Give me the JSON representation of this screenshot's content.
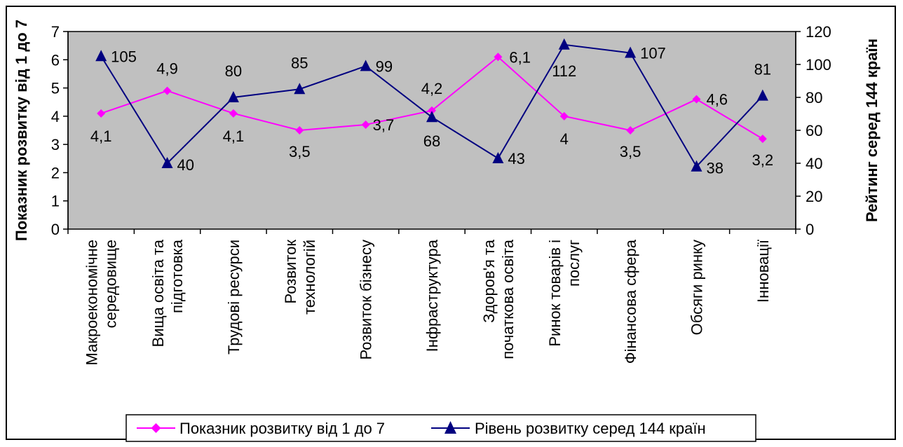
{
  "chart_data": {
    "type": "line",
    "categories_lines": [
      [
        "Макроекономічне",
        "середовище"
      ],
      [
        "Вища освіта та",
        "підготовка"
      ],
      [
        "Трудові ресурси"
      ],
      [
        "Розвиток",
        "технологій"
      ],
      [
        "Розвиток бізнесу"
      ],
      [
        "Інфраструктура"
      ],
      [
        "Здоров'я та",
        "початкова освіта"
      ],
      [
        "Ринок товарів і",
        "послуг"
      ],
      [
        "Фінансова сфера"
      ],
      [
        "Обсяги ринку"
      ],
      [
        "Інновації"
      ]
    ],
    "y_left": {
      "label": "Показник розвитку від 1 до 7",
      "min": 0,
      "max": 7,
      "ticks": [
        0,
        1,
        2,
        3,
        4,
        5,
        6,
        7
      ]
    },
    "y_right": {
      "label": "Рейтинг серед 144 країн",
      "min": 0,
      "max": 120,
      "ticks": [
        0,
        20,
        40,
        60,
        80,
        100,
        120
      ]
    },
    "series": [
      {
        "name": "Показник розвитку від 1 до 7",
        "axis": "left",
        "color": "#ff00ff",
        "marker": "diamond",
        "values": [
          4.1,
          4.9,
          4.1,
          3.5,
          3.7,
          4.2,
          6.1,
          4.0,
          3.5,
          4.6,
          3.2
        ],
        "labels": [
          "4,1",
          "4,9",
          "4,1",
          "3,5",
          "3,7",
          "4,2",
          "6,1",
          "4",
          "3,5",
          "4,6",
          "3,2"
        ]
      },
      {
        "name": "Рівень розвитку серед 144 країн",
        "axis": "right",
        "color": "#000080",
        "marker": "triangle",
        "values": [
          105,
          40,
          80,
          85,
          99,
          68,
          43,
          112,
          107,
          38,
          81
        ],
        "labels": [
          "105",
          "40",
          "80",
          "85",
          "99",
          "68",
          "43",
          "112",
          "107",
          "38",
          "81"
        ]
      }
    ],
    "plot_background": "#c0c0c0",
    "grid": false,
    "legend_position": "bottom"
  }
}
